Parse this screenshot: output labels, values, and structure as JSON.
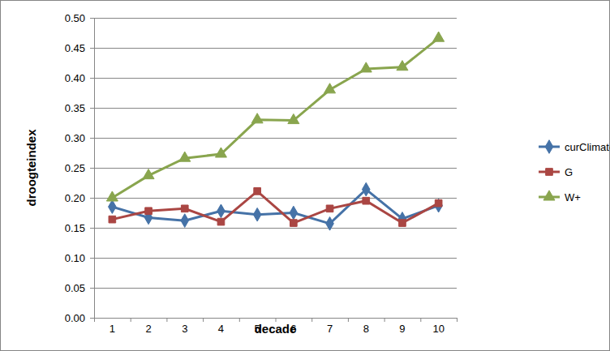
{
  "chart_data": {
    "type": "line",
    "x_label": "decade",
    "y_label": "droogteindex",
    "categories": [
      "1",
      "2",
      "3",
      "4",
      "5",
      "6",
      "7",
      "8",
      "9",
      "10"
    ],
    "series": [
      {
        "name": "curClimate",
        "color": "#4572a7",
        "marker": "diamond",
        "values": [
          0.185,
          0.167,
          0.162,
          0.178,
          0.172,
          0.175,
          0.157,
          0.214,
          0.165,
          0.187
        ]
      },
      {
        "name": "G",
        "color": "#aa4643",
        "marker": "square",
        "values": [
          0.164,
          0.178,
          0.182,
          0.16,
          0.211,
          0.158,
          0.182,
          0.195,
          0.158,
          0.191
        ]
      },
      {
        "name": "W+",
        "color": "#89a54e",
        "marker": "triangle",
        "values": [
          0.2,
          0.237,
          0.266,
          0.273,
          0.33,
          0.329,
          0.38,
          0.415,
          0.418,
          0.466
        ]
      }
    ],
    "ylim": [
      0,
      0.5
    ],
    "yticks": [
      {
        "value": 0,
        "label": "0.00"
      },
      {
        "value": 0.05,
        "label": "0.05"
      },
      {
        "value": 0.1,
        "label": "0.10"
      },
      {
        "value": 0.15,
        "label": "0.15"
      },
      {
        "value": 0.2,
        "label": "0.20"
      },
      {
        "value": 0.25,
        "label": "0.25"
      },
      {
        "value": 0.3,
        "label": "0.30"
      },
      {
        "value": 0.35,
        "label": "0.35"
      },
      {
        "value": 0.4,
        "label": "0.40"
      },
      {
        "value": 0.45,
        "label": "0.45"
      },
      {
        "value": 0.5,
        "label": "0.50"
      }
    ],
    "grid": true,
    "legend": "right"
  }
}
